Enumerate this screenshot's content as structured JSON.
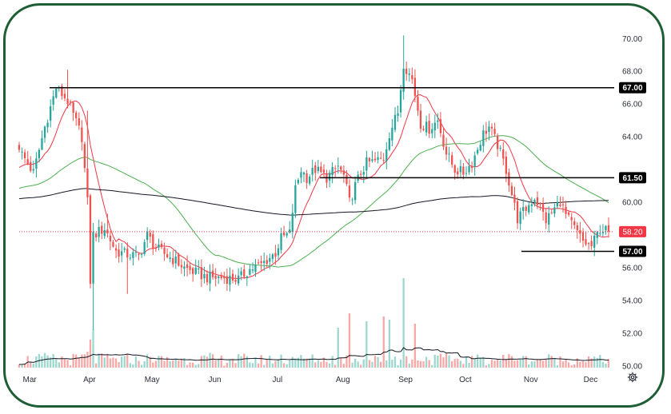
{
  "chart_data": {
    "type": "candlestick",
    "title": "",
    "y_axis": {
      "position": "right",
      "range": [
        49.6,
        70.6
      ],
      "ticks": [
        "70.00",
        "68.00",
        "66.00",
        "64.00",
        "62.00",
        "60.00",
        "58.00",
        "56.00",
        "54.00",
        "52.00",
        "50.00"
      ]
    },
    "x_axis": {
      "tick_labels": [
        "Mar",
        "Apr",
        "May",
        "Jun",
        "Jul",
        "Aug",
        "Sep",
        "Oct",
        "Nov",
        "Dec"
      ],
      "tick_index": [
        2,
        23,
        45,
        67,
        89,
        112,
        134,
        155,
        178,
        199
      ]
    },
    "colors": {
      "up": "#26a69a",
      "down": "#ef5350",
      "up_volume": "#9dd8cf",
      "down_volume": "#f7a9a7",
      "ma_short": "#f23645",
      "ma_mid": "#4caf50",
      "ma_long": "#131722",
      "horizontal_line": "#000000",
      "last_price": "#f23645"
    },
    "horizontal_levels": [
      {
        "price": 67.0,
        "label": "67.00"
      },
      {
        "price": 61.5,
        "label": "61.50"
      },
      {
        "price": 57.0,
        "label": "57.00"
      }
    ],
    "last_price": {
      "price": 58.2,
      "label": "58.20"
    },
    "anchors": [
      [
        0,
        63.2
      ],
      [
        5,
        61.8
      ],
      [
        9,
        64.6
      ],
      [
        13,
        67.0
      ],
      [
        17,
        66.2
      ],
      [
        22,
        64.0
      ],
      [
        24,
        60.0
      ],
      [
        25,
        55.2
      ],
      [
        26,
        58.0
      ],
      [
        30,
        58.4
      ],
      [
        34,
        57.0
      ],
      [
        38,
        56.8
      ],
      [
        42,
        56.7
      ],
      [
        45,
        58.0
      ],
      [
        48,
        57.2
      ],
      [
        55,
        56.4
      ],
      [
        58,
        56.0
      ],
      [
        62,
        55.7
      ],
      [
        66,
        55.4
      ],
      [
        71,
        55.4
      ],
      [
        77,
        55.3
      ],
      [
        81,
        55.9
      ],
      [
        85,
        56.2
      ],
      [
        90,
        56.9
      ],
      [
        92,
        57.8
      ],
      [
        95,
        58.1
      ],
      [
        97,
        60.8
      ],
      [
        99,
        62.0
      ],
      [
        101,
        61.5
      ],
      [
        104,
        62.0
      ],
      [
        108,
        61.5
      ],
      [
        112,
        62.2
      ],
      [
        114,
        61.6
      ],
      [
        116,
        60.0
      ],
      [
        118,
        61.0
      ],
      [
        120,
        61.8
      ],
      [
        122,
        62.4
      ],
      [
        125,
        62.5
      ],
      [
        128,
        62.7
      ],
      [
        130,
        64.2
      ],
      [
        133,
        65.5
      ],
      [
        135,
        68.5
      ],
      [
        138,
        67.5
      ],
      [
        141,
        64.8
      ],
      [
        144,
        64.5
      ],
      [
        147,
        65.0
      ],
      [
        150,
        63.0
      ],
      [
        153,
        62.0
      ],
      [
        156,
        61.8
      ],
      [
        159,
        62.4
      ],
      [
        161,
        63.3
      ],
      [
        163,
        64.2
      ],
      [
        165,
        64.6
      ],
      [
        168,
        63.5
      ],
      [
        171,
        62.0
      ],
      [
        173,
        60.5
      ],
      [
        175,
        59.0
      ],
      [
        178,
        59.6
      ],
      [
        181,
        60.3
      ],
      [
        183,
        59.7
      ],
      [
        185,
        58.9
      ],
      [
        188,
        59.6
      ],
      [
        190,
        60.1
      ],
      [
        192,
        59.2
      ],
      [
        195,
        58.4
      ],
      [
        198,
        57.6
      ],
      [
        201,
        57.3
      ],
      [
        204,
        58.4
      ],
      [
        207,
        58.2
      ]
    ]
  }
}
